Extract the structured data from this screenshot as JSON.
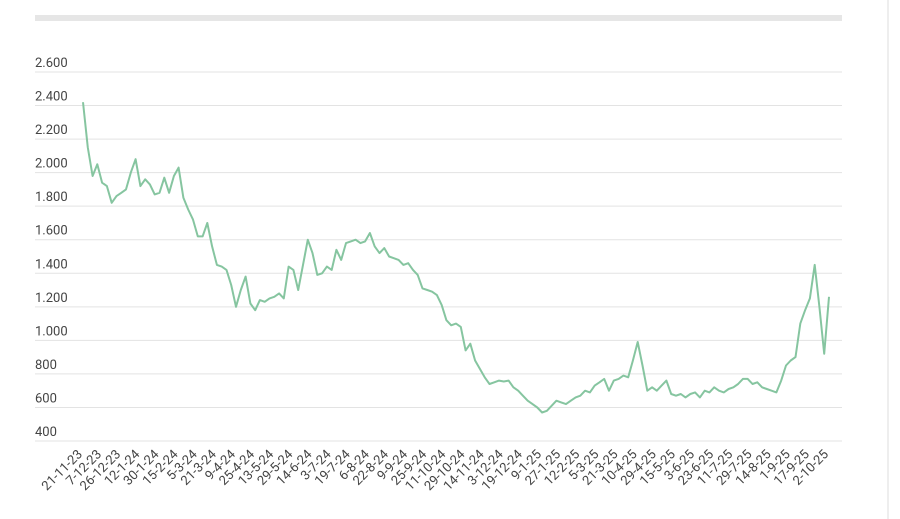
{
  "chart_data": {
    "type": "line",
    "categories": [
      "21-11-23",
      null,
      null,
      null,
      "7-12-23",
      null,
      null,
      null,
      "26-12-23",
      null,
      null,
      null,
      "12-1-24",
      null,
      null,
      null,
      "30-1-24",
      null,
      null,
      null,
      "15-2-24",
      null,
      null,
      null,
      "5-3-24",
      null,
      null,
      null,
      "21-3-24",
      null,
      null,
      null,
      "9-4-24",
      null,
      null,
      null,
      "25-4-24",
      null,
      null,
      null,
      "13-5-24",
      null,
      null,
      null,
      "29-5-24",
      null,
      null,
      null,
      "14-6-24",
      null,
      null,
      null,
      "3-7-24",
      null,
      null,
      null,
      "19-7-24",
      null,
      null,
      null,
      "6-8-24",
      null,
      null,
      null,
      "22-8-24",
      null,
      null,
      null,
      "9-9-24",
      null,
      null,
      null,
      "25-9-24",
      null,
      null,
      null,
      "11-10-24",
      null,
      null,
      null,
      "29-10-24",
      null,
      null,
      null,
      "14-11-24",
      null,
      null,
      null,
      "3-12-24",
      null,
      null,
      null,
      "19-12-24",
      null,
      null,
      null,
      "9-1-25",
      null,
      null,
      null,
      "27-1-25",
      null,
      null,
      null,
      "12-2-25",
      null,
      null,
      null,
      "5-3-25",
      null,
      null,
      null,
      "21-3-25",
      null,
      null,
      null,
      "10-4-25",
      null,
      null,
      null,
      "29-4-25",
      null,
      null,
      null,
      "15-5-25",
      null,
      null,
      null,
      "3-6-25",
      null,
      null,
      null,
      "23-6-25",
      null,
      null,
      null,
      "11-7-25",
      null,
      null,
      null,
      "29-7-25",
      null,
      null,
      null,
      "14-8-25",
      null,
      null,
      null,
      "1-9-25",
      null,
      null,
      null,
      "17-9-25",
      null,
      null,
      null,
      "2-10-25"
    ],
    "series": [
      {
        "color": "#86c5a0",
        "values": [
          2420,
          2150,
          1980,
          2050,
          1940,
          1920,
          1820,
          1860,
          1880,
          1900,
          2000,
          2080,
          1920,
          1960,
          1930,
          1870,
          1880,
          1970,
          1880,
          1980,
          2030,
          1850,
          1780,
          1720,
          1620,
          1620,
          1700,
          1560,
          1450,
          1440,
          1420,
          1330,
          1200,
          1300,
          1380,
          1220,
          1180,
          1240,
          1230,
          1250,
          1260,
          1280,
          1250,
          1440,
          1420,
          1300,
          1450,
          1600,
          1520,
          1390,
          1400,
          1440,
          1420,
          1540,
          1480,
          1580,
          1590,
          1600,
          1580,
          1590,
          1640,
          1560,
          1520,
          1550,
          1500,
          1490,
          1480,
          1450,
          1460,
          1420,
          1390,
          1310,
          1300,
          1290,
          1270,
          1210,
          1120,
          1090,
          1100,
          1080,
          940,
          980,
          880,
          830,
          780,
          740,
          750,
          760,
          755,
          760,
          720,
          700,
          670,
          640,
          620,
          600,
          570,
          580,
          610,
          640,
          630,
          620,
          640,
          660,
          670,
          700,
          690,
          730,
          750,
          770,
          700,
          760,
          770,
          790,
          780,
          880,
          990,
          850,
          700,
          720,
          700,
          730,
          760,
          680,
          670,
          680,
          660,
          680,
          690,
          660,
          700,
          690,
          720,
          700,
          690,
          710,
          720,
          740,
          770,
          770,
          740,
          750,
          720,
          710,
          700,
          690,
          760,
          850,
          880,
          900,
          1100,
          1180,
          1250,
          1450,
          1200,
          920,
          1260
        ]
      }
    ],
    "ylim": [
      400,
      2600
    ],
    "yticks": [
      400,
      600,
      800,
      {
        "value": 1000,
        "label": "1.000"
      },
      {
        "value": 1200,
        "label": "1.200"
      },
      {
        "value": 1400,
        "label": "1.400"
      },
      {
        "value": 1600,
        "label": "1.600"
      },
      {
        "value": 1800,
        "label": "1.800"
      },
      {
        "value": 2000,
        "label": "2.000"
      },
      {
        "value": 2200,
        "label": "2.200"
      },
      {
        "value": 2400,
        "label": "2.400"
      },
      {
        "value": 2600,
        "label": "2.600"
      }
    ],
    "grid": true
  }
}
